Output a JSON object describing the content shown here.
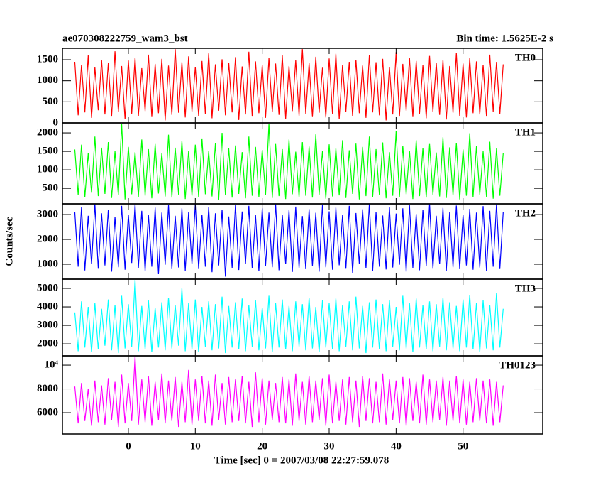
{
  "chart_data": {
    "type": "line",
    "title": "ae070308222759_wam3_bst",
    "subtitle": "Bin time: 1.5625E-2 s",
    "ylabel": "Counts/sec",
    "xlabel": "Time [sec] 0 = 2007/03/08 22:27:59.078",
    "xlim": [
      -9.85,
      61.9
    ],
    "xticks": [
      0,
      10,
      20,
      30,
      40,
      50
    ],
    "x": [
      -8,
      -7.5,
      -7,
      -6.5,
      -6,
      -5.5,
      -5,
      -4.5,
      -4,
      -3.5,
      -3,
      -2.5,
      -2,
      -1.5,
      -1,
      -0.5,
      0,
      0.5,
      1,
      1.5,
      2,
      2.5,
      3,
      3.5,
      4,
      4.5,
      5,
      5.5,
      6,
      6.5,
      7,
      7.5,
      8,
      8.5,
      9,
      9.5,
      10,
      10.5,
      11,
      11.5,
      12,
      12.5,
      13,
      13.5,
      14,
      14.5,
      15,
      15.5,
      16,
      16.5,
      17,
      17.5,
      18,
      18.5,
      19,
      19.5,
      20,
      20.5,
      21,
      21.5,
      22,
      22.5,
      23,
      23.5,
      24,
      24.5,
      25,
      25.5,
      26,
      26.5,
      27,
      27.5,
      28,
      28.5,
      29,
      29.5,
      30,
      30.5,
      31,
      31.5,
      32,
      32.5,
      33,
      33.5,
      34,
      34.5,
      35,
      35.5,
      36,
      36.5,
      37,
      37.5,
      38,
      38.5,
      39,
      39.5,
      40,
      40.5,
      41,
      41.5,
      42,
      42.5,
      43,
      43.5,
      44,
      44.5,
      45,
      45.5,
      46,
      46.5,
      47,
      47.5,
      48,
      48.5,
      49,
      49.5,
      50,
      50.5,
      51,
      51.5,
      52,
      52.5,
      53,
      53.5,
      54,
      54.5,
      55,
      55.5,
      56
    ],
    "panels": [
      {
        "ylim": [
          0,
          1770
        ],
        "yticks": [
          0,
          500,
          1000,
          1500
        ],
        "series": [
          {
            "name": "TH0",
            "color": "#ff0000",
            "values": [
              1450,
              180,
              1380,
              250,
              1600,
              120,
              1320,
              300,
              1500,
              200,
              1420,
              150,
              1700,
              260,
              1350,
              90,
              1480,
              220,
              1550,
              170,
              1300,
              280,
              1620,
              140,
              1400,
              230,
              1520,
              60,
              1360,
              190,
              1750,
              240,
              1440,
              130,
              1580,
              270,
              1330,
              160,
              1470,
              210,
              1650,
              110,
              1390,
              290,
              1510,
              180,
              1430,
              250,
              1560,
              70,
              1340,
              200,
              1690,
              150,
              1460,
              230,
              1370,
              120,
              1540,
              260,
              1410,
              190,
              1600,
              100,
              1350,
              280,
              1490,
              170,
              1750,
              220,
              1420,
              140,
              1570,
              240,
              1310,
              130,
              1530,
              210,
              1640,
              90,
              1380,
              270,
              1450,
              160,
              1500,
              230,
              1360,
              120,
              1610,
              250,
              1440,
              180,
              1520,
              60,
              1330,
              200,
              1680,
              150,
              1400,
              290,
              1550,
              140,
              1470,
              220,
              1370,
              110,
              1590,
              260,
              1430,
              190,
              1500,
              80,
              1350,
              240,
              1660,
              170,
              1410,
              130,
              1540,
              230,
              1460,
              200,
              1380,
              150,
              1620,
              270,
              1450,
              210,
              1390
            ]
          }
        ]
      },
      {
        "ylim": [
          80,
          2270
        ],
        "yticks": [
          500,
          1000,
          1500,
          2000
        ],
        "series": [
          {
            "name": "TH1",
            "color": "#00ff00",
            "values": [
              1550,
              320,
              1680,
              260,
              1450,
              380,
              1900,
              290,
              1600,
              350,
              1750,
              240,
              1500,
              310,
              2250,
              200,
              1620,
              340,
              1480,
              270,
              1820,
              300,
              1560,
              230,
              1700,
              360,
              1450,
              280,
              1950,
              250,
              1600,
              330,
              1780,
              210,
              1520,
              300,
              1680,
              260,
              1850,
              340,
              1500,
              280,
              1720,
              190,
              2000,
              310,
              1580,
              250,
              1660,
              350,
              1480,
              230,
              1900,
              300,
              1620,
              270,
              1540,
              320,
              2250,
              240,
              1700,
              290,
              1560,
              210,
              1820,
              340,
              1490,
              260,
              1750,
              300,
              1630,
              250,
              1960,
              330,
              1510,
              220,
              1690,
              280,
              1580,
              310,
              1800,
              240,
              1530,
              350,
              1710,
              200,
              1620,
              290,
              1900,
              260,
              1560,
              320,
              1740,
              230,
              1480,
              300,
              2050,
              270,
              1650,
              340,
              1520,
              210,
              1800,
              290,
              1590,
              250,
              1700,
              330,
              1470,
              280,
              1880,
              240,
              1610,
              310,
              1730,
              200,
              1550,
              300,
              1990,
              260,
              1640,
              330,
              1500,
              270,
              1760,
              220,
              1580,
              300,
              1450
            ]
          }
        ]
      },
      {
        "ylim": [
          400,
          3430
        ],
        "yticks": [
          1000,
          2000,
          3000
        ],
        "series": [
          {
            "name": "TH2",
            "color": "#0000ff",
            "values": [
              3100,
              900,
              3300,
              750,
              2950,
              1000,
              3430,
              820,
              3050,
              950,
              3200,
              700,
              2900,
              880,
              3350,
              780,
              3000,
              1050,
              3430,
              850,
              3150,
              720,
              2980,
              900,
              3280,
              600,
              3080,
              980,
              3380,
              800,
              2950,
              870,
              3250,
              740,
              3100,
              1000,
              3430,
              810,
              3000,
              900,
              3300,
              680,
              3050,
              950,
              3200,
              500,
              2920,
              860,
              3400,
              770,
              3120,
              1020,
              3350,
              830,
              2970,
              720,
              3250,
              940,
              3080,
              880,
              3430,
              760,
              3000,
              1000,
              3180,
              690,
              3320,
              850,
              2940,
              800,
              3220,
              930,
              3070,
              700,
              3400,
              880,
              3130,
              780,
              3280,
              960,
              2990,
              820,
              3350,
              650,
              3060,
              1010,
              3210,
              840,
              3430,
              720,
              3100,
              900,
              2960,
              790,
              3300,
              870,
              3040,
              980,
              3250,
              700,
              3380,
              850,
              3020,
              760,
              3190,
              920,
              3430,
              820,
              2950,
              1000,
              3270,
              730,
              3110,
              880,
              3360,
              800,
              3000,
              950,
              3230,
              780,
              3080,
              870,
              3340,
              740,
              3150,
              900,
              3430,
              810,
              3100
            ]
          }
        ]
      },
      {
        "ylim": [
          1350,
          5500
        ],
        "yticks": [
          2000,
          3000,
          4000,
          5000
        ],
        "series": [
          {
            "name": "TH3",
            "color": "#00ffff",
            "values": [
              3700,
              1600,
              4300,
              1800,
              4000,
              1550,
              4200,
              1700,
              3900,
              1900,
              4400,
              1650,
              4100,
              1500,
              4600,
              1750,
              4150,
              1850,
              5500,
              1600,
              4050,
              1700,
              4350,
              1550,
              3950,
              1800,
              4250,
              1650,
              4500,
              1750,
              4100,
              1900,
              5000,
              1600,
              4200,
              1700,
              4400,
              1550,
              4000,
              1850,
              4300,
              1650,
              4150,
              1750,
              4550,
              1500,
              4050,
              1800,
              4250,
              1700,
              4450,
              1600,
              4100,
              1850,
              4350,
              1650,
              3950,
              1750,
              4600,
              1550,
              4200,
              1800,
              4400,
              1700,
              4050,
              1600,
              4300,
              1850,
              4150,
              1650,
              4500,
              1750,
              4000,
              1550,
              4350,
              1800,
              4200,
              1700,
              4450,
              1600,
              4100,
              1850,
              4300,
              1650,
              4550,
              1750,
              4050,
              1500,
              4250,
              1800,
              4400,
              1700,
              4150,
              1600,
              4350,
              1850,
              4000,
              1650,
              4600,
              1750,
              4200,
              1550,
              4450,
              1800,
              4100,
              1700,
              4300,
              1600,
              4150,
              1850,
              4500,
              1650,
              4250,
              1750,
              4050,
              1600,
              4400,
              1800,
              4650,
              1700,
              4200,
              1550,
              4350,
              1750,
              4100,
              1650,
              4750,
              1800,
              3900
            ]
          }
        ]
      },
      {
        "ylim": [
          4210,
          10780
        ],
        "yticks": [
          6000,
          8000,
          {
            "value": 10000,
            "label": "10⁴"
          }
        ],
        "series": [
          {
            "name": "TH0123",
            "color": "#ff00ff",
            "values": [
              8200,
              5100,
              8500,
              5300,
              8000,
              4900,
              8700,
              5200,
              8300,
              5000,
              8900,
              5400,
              8600,
              4800,
              9200,
              5100,
              8500,
              5300,
              10780,
              5000,
              8800,
              5200,
              9100,
              4900,
              8600,
              5400,
              9300,
              5100,
              8700,
              5300,
              9000,
              4800,
              8600,
              5200,
              9600,
              5000,
              8800,
              5300,
              9100,
              5100,
              8700,
              4900,
              9200,
              5400,
              8500,
              5000,
              9000,
              5200,
              8800,
              5300,
              9100,
              5100,
              8600,
              4800,
              9400,
              5200,
              8900,
              5000,
              8700,
              5400,
              8500,
              5200,
              9000,
              5100,
              8800,
              4900,
              9300,
              5300,
              8600,
              5000,
              9100,
              5200,
              8700,
              5400,
              8900,
              4900,
              9200,
              5100,
              8600,
              5300,
              8800,
              5000,
              9000,
              5200,
              8700,
              4800,
              9100,
              5300,
              8900,
              5100,
              8600,
              5200,
              9300,
              5000,
              8800,
              5400,
              8700,
              5100,
              9000,
              4900,
              8900,
              5300,
              8600,
              5100,
              9200,
              5000,
              8800,
              5200,
              8700,
              5400,
              9000,
              4900,
              8700,
              5300,
              9100,
              5100,
              8800,
              5000,
              8600,
              5200,
              8900,
              5300,
              8700,
              5100,
              8800,
              4900,
              8600,
              5200,
              8300
            ]
          }
        ]
      }
    ]
  }
}
